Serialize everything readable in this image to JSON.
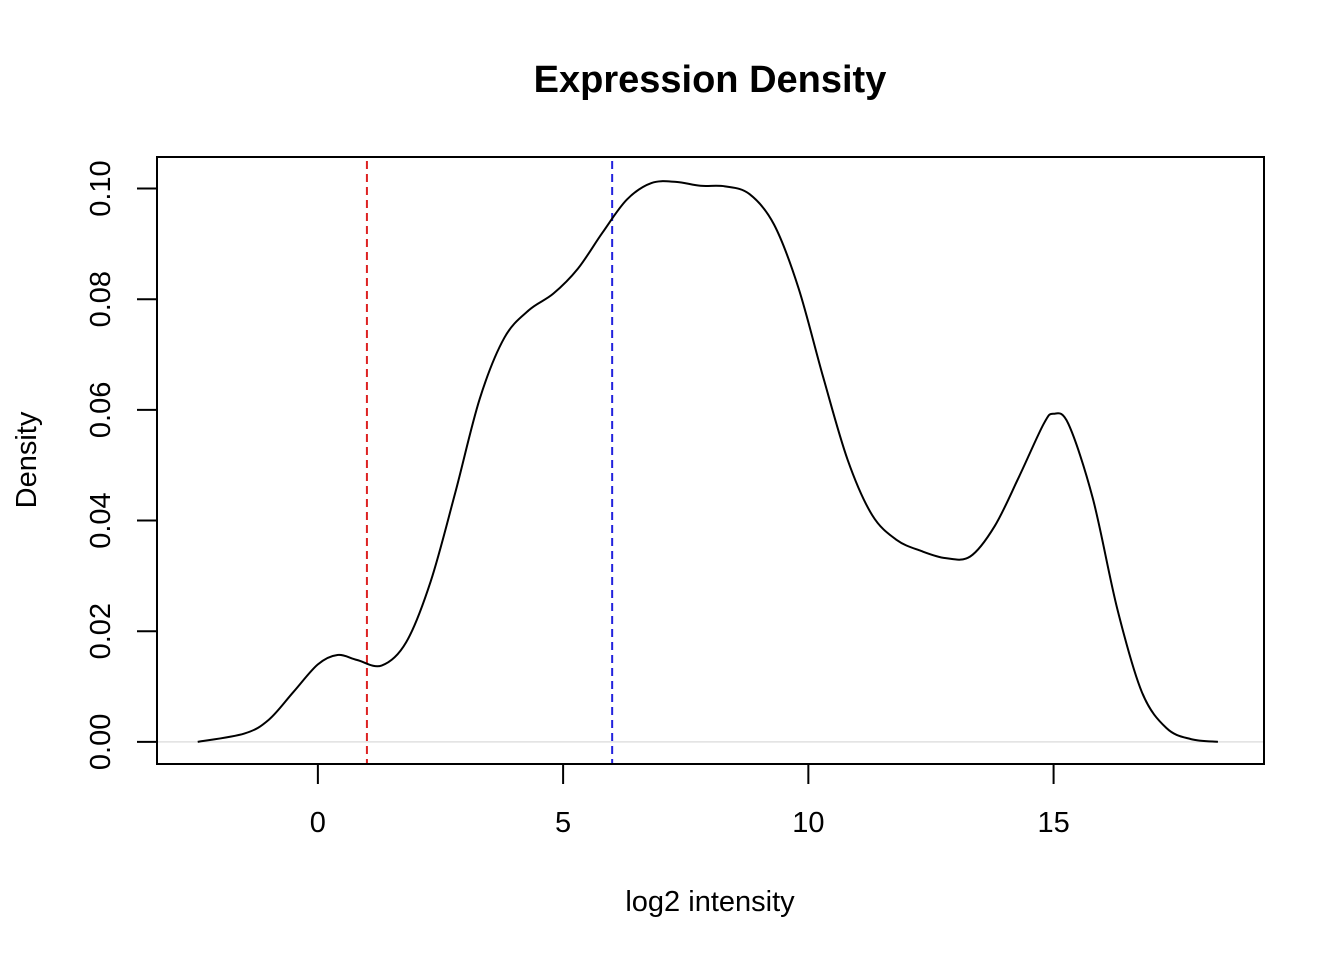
{
  "chart_data": {
    "type": "line",
    "title": "Expression Density",
    "xlabel": "log2 intensity",
    "ylabel": "Density",
    "xlim": [
      -3.28,
      19.29
    ],
    "ylim": [
      -0.004,
      0.1057
    ],
    "x_ticks": [
      0,
      5,
      10,
      15
    ],
    "x_tick_labels": [
      "0",
      "5",
      "10",
      "15"
    ],
    "y_ticks": [
      0,
      0.02,
      0.04,
      0.06,
      0.08,
      0.1
    ],
    "y_tick_labels": [
      "0.00",
      "0.02",
      "0.04",
      "0.06",
      "0.08",
      "0.10"
    ],
    "grid": false,
    "legend": "none",
    "series": [
      {
        "color": "#000000",
        "x": [
          -2.45,
          -1.5,
          -1.0,
          -0.5,
          0.0,
          0.4,
          0.8,
          1.3,
          1.8,
          2.3,
          2.8,
          3.3,
          3.8,
          4.3,
          4.8,
          5.3,
          5.8,
          6.3,
          6.8,
          7.3,
          7.8,
          8.3,
          8.8,
          9.3,
          9.8,
          10.3,
          10.8,
          11.3,
          11.8,
          12.3,
          12.8,
          13.3,
          13.8,
          14.3,
          14.8,
          15.0,
          15.3,
          15.8,
          16.3,
          16.8,
          17.3,
          17.8,
          18.35
        ],
        "y": [
          0.0,
          0.0015,
          0.004,
          0.009,
          0.014,
          0.0157,
          0.0148,
          0.0138,
          0.018,
          0.029,
          0.045,
          0.062,
          0.073,
          0.078,
          0.081,
          0.0855,
          0.092,
          0.098,
          0.101,
          0.1012,
          0.1005,
          0.1004,
          0.099,
          0.0935,
          0.082,
          0.066,
          0.051,
          0.041,
          0.0365,
          0.0345,
          0.0332,
          0.0335,
          0.039,
          0.048,
          0.0575,
          0.0593,
          0.0575,
          0.044,
          0.024,
          0.009,
          0.0025,
          0.0005,
          0.0
        ]
      }
    ],
    "vlines": [
      {
        "x": 1.0,
        "color": "#dd2222",
        "style": "dashed"
      },
      {
        "x": 6.0,
        "color": "#2222dd",
        "style": "dashed"
      }
    ],
    "hlines": [
      {
        "y": 0,
        "color": "#e0e0e0",
        "style": "solid"
      }
    ]
  }
}
